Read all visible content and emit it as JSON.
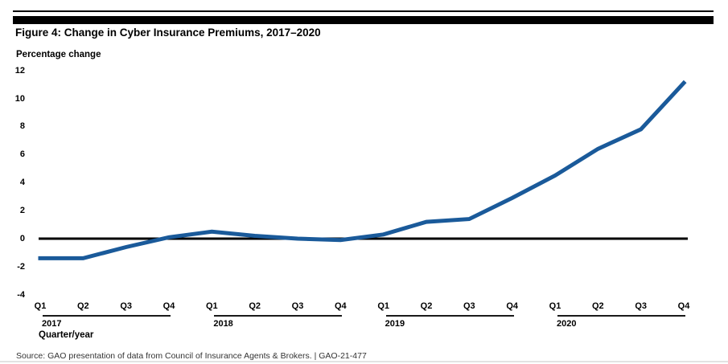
{
  "header": {
    "title": "Figure 4: Change in Cyber Insurance Premiums, 2017–2020"
  },
  "chart": {
    "y_axis_label": "Percentage change",
    "x_axis_label": "Quarter/year"
  },
  "chart_data": {
    "type": "line",
    "title": "Change in Cyber Insurance Premiums, 2017–2020",
    "xlabel": "Quarter/year",
    "ylabel": "Percentage change",
    "ylim": [
      -4,
      12
    ],
    "y_ticks": [
      12,
      10,
      8,
      6,
      4,
      2,
      0,
      -2,
      -4
    ],
    "quarters": [
      "Q1",
      "Q2",
      "Q3",
      "Q4",
      "Q1",
      "Q2",
      "Q3",
      "Q4",
      "Q1",
      "Q2",
      "Q3",
      "Q4",
      "Q1",
      "Q2",
      "Q3",
      "Q4"
    ],
    "years": [
      "2017",
      "2018",
      "2019",
      "2020"
    ],
    "categories": [
      "Q1 2017",
      "Q2 2017",
      "Q3 2017",
      "Q4 2017",
      "Q1 2018",
      "Q2 2018",
      "Q3 2018",
      "Q4 2018",
      "Q1 2019",
      "Q2 2019",
      "Q3 2019",
      "Q4 2019",
      "Q1 2020",
      "Q2 2020",
      "Q3 2020",
      "Q4 2020"
    ],
    "series": [
      {
        "name": "Percentage change in cyber insurance premiums",
        "values": [
          -1.4,
          -1.4,
          -0.6,
          0.1,
          0.5,
          0.2,
          0.0,
          -0.1,
          0.3,
          1.2,
          1.4,
          2.9,
          4.5,
          6.4,
          7.8,
          11.1
        ]
      }
    ],
    "line_color": "#1a5a9a",
    "zero_line_color": "#000000",
    "grid": false,
    "legend": "none"
  },
  "footer": {
    "source": "Source: GAO presentation of data from Council of Insurance Agents & Brokers.  |  GAO-21-477"
  }
}
